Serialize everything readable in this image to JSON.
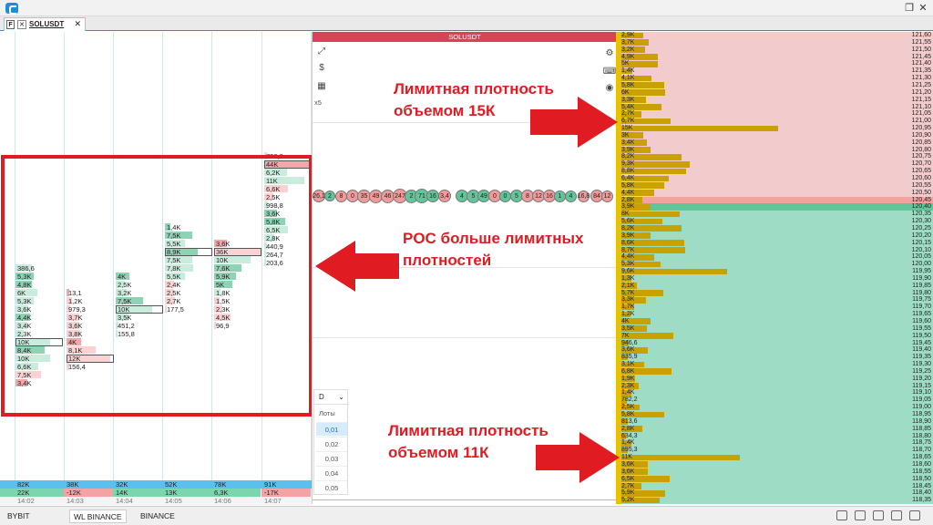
{
  "tab": {
    "label": "SOLUSDT"
  },
  "chart": {
    "header": "SOLUSDT",
    "zoom": "x5"
  },
  "cluster": {
    "columns": [
      {
        "x": 16,
        "bars": [
          {
            "y": 290,
            "t": "386,6",
            "k": "lg",
            "w": 18
          },
          {
            "y": 299,
            "t": "5,3K",
            "k": "g",
            "w": 20
          },
          {
            "y": 308,
            "t": "4,8K",
            "k": "g",
            "w": 18
          },
          {
            "y": 317,
            "t": "6K",
            "k": "lg",
            "w": 24
          },
          {
            "y": 326,
            "t": "5,3K",
            "k": "lg",
            "w": 20
          },
          {
            "y": 335,
            "t": "3,6K",
            "k": "lg",
            "w": 14
          },
          {
            "y": 344,
            "t": "4,4K",
            "k": "g",
            "w": 16
          },
          {
            "y": 353,
            "t": "3,4K",
            "k": "lg",
            "w": 13
          },
          {
            "y": 362,
            "t": "2,3K",
            "k": "lg",
            "w": 9
          },
          {
            "y": 371,
            "t": "10K",
            "k": "lg",
            "w": 38
          },
          {
            "y": 380,
            "t": "8,4K",
            "k": "g",
            "w": 32
          },
          {
            "y": 389,
            "t": "10K",
            "k": "lg",
            "w": 38
          },
          {
            "y": 398,
            "t": "6,6K",
            "k": "lg",
            "w": 25
          },
          {
            "y": 407,
            "t": "7,5K",
            "k": "lr",
            "w": 28
          },
          {
            "y": 416,
            "t": "3,4K",
            "k": "r",
            "w": 13
          }
        ],
        "poc": 371
      },
      {
        "x": 72,
        "bars": [
          {
            "y": 317,
            "t": "13,1",
            "k": "r",
            "w": 3
          },
          {
            "y": 326,
            "t": "1,2K",
            "k": "lr",
            "w": 6
          },
          {
            "y": 335,
            "t": "979,3",
            "k": "lr",
            "w": 4
          },
          {
            "y": 344,
            "t": "3,7K",
            "k": "lr",
            "w": 14
          },
          {
            "y": 353,
            "t": "3,6K",
            "k": "lr",
            "w": 14
          },
          {
            "y": 362,
            "t": "3,8K",
            "k": "lr",
            "w": 15
          },
          {
            "y": 371,
            "t": "4K",
            "k": "r",
            "w": 16
          },
          {
            "y": 380,
            "t": "8,1K",
            "k": "lr",
            "w": 32
          },
          {
            "y": 389,
            "t": "12K",
            "k": "lr",
            "w": 48
          },
          {
            "y": 398,
            "t": "156,4",
            "k": "lr",
            "w": 3
          }
        ],
        "poc": 389
      },
      {
        "x": 126,
        "bars": [
          {
            "y": 299,
            "t": "4K",
            "k": "g",
            "w": 15
          },
          {
            "y": 308,
            "t": "2,5K",
            "k": "lg",
            "w": 10
          },
          {
            "y": 317,
            "t": "3,2K",
            "k": "lg",
            "w": 12
          },
          {
            "y": 326,
            "t": "7,5K",
            "k": "g",
            "w": 30
          },
          {
            "y": 335,
            "t": "10K",
            "k": "lg",
            "w": 40
          },
          {
            "y": 344,
            "t": "3,5K",
            "k": "lg",
            "w": 14
          },
          {
            "y": 353,
            "t": "451,2",
            "k": "lg",
            "w": 3
          },
          {
            "y": 362,
            "t": "155,8",
            "k": "lg",
            "w": 2
          }
        ],
        "poc": 335
      },
      {
        "x": 180,
        "bars": [
          {
            "y": 245,
            "t": "1,4K",
            "k": "g",
            "w": 6
          },
          {
            "y": 254,
            "t": "7,5K",
            "k": "g",
            "w": 30
          },
          {
            "y": 263,
            "t": "5,5K",
            "k": "lg",
            "w": 22
          },
          {
            "y": 272,
            "t": "8,9K",
            "k": "g",
            "w": 36
          },
          {
            "y": 281,
            "t": "7,5K",
            "k": "lg",
            "w": 30
          },
          {
            "y": 290,
            "t": "7,8K",
            "k": "lg",
            "w": 31
          },
          {
            "y": 299,
            "t": "5,5K",
            "k": "lg",
            "w": 22
          },
          {
            "y": 308,
            "t": "2,4K",
            "k": "lr",
            "w": 10
          },
          {
            "y": 317,
            "t": "2,5K",
            "k": "lr",
            "w": 10
          },
          {
            "y": 326,
            "t": "2,7K",
            "k": "lr",
            "w": 11
          },
          {
            "y": 335,
            "t": "177,5",
            "k": "lr",
            "w": 2
          }
        ],
        "poc": 272
      },
      {
        "x": 234,
        "bars": [
          {
            "y": 263,
            "t": "3,6K",
            "k": "r",
            "w": 14
          },
          {
            "y": 272,
            "t": "36K",
            "k": "lr",
            "w": 52
          },
          {
            "y": 281,
            "t": "10K",
            "k": "lg",
            "w": 40
          },
          {
            "y": 290,
            "t": "7,6K",
            "k": "g",
            "w": 30
          },
          {
            "y": 299,
            "t": "5,9K",
            "k": "g",
            "w": 24
          },
          {
            "y": 308,
            "t": "5K",
            "k": "g",
            "w": 20
          },
          {
            "y": 317,
            "t": "1,8K",
            "k": "lg",
            "w": 7
          },
          {
            "y": 326,
            "t": "1,5K",
            "k": "lr",
            "w": 6
          },
          {
            "y": 335,
            "t": "2,3K",
            "k": "lr",
            "w": 9
          },
          {
            "y": 344,
            "t": "4,5K",
            "k": "lr",
            "w": 18
          },
          {
            "y": 353,
            "t": "96,9",
            "k": "lr",
            "w": 2
          }
        ],
        "poc": 272
      },
      {
        "x": 289,
        "bars": [
          {
            "y": 167,
            "t": "738,9",
            "k": "lg",
            "w": 3
          },
          {
            "y": 176,
            "t": "44K",
            "k": "r",
            "w": 52
          },
          {
            "y": 185,
            "t": "6,2K",
            "k": "lg",
            "w": 25
          },
          {
            "y": 194,
            "t": "11K",
            "k": "lg",
            "w": 44
          },
          {
            "y": 203,
            "t": "6,6K",
            "k": "lr",
            "w": 26
          },
          {
            "y": 212,
            "t": "2,5K",
            "k": "lr",
            "w": 10
          },
          {
            "y": 221,
            "t": "998,8",
            "k": "lg",
            "w": 4
          },
          {
            "y": 230,
            "t": "3,6K",
            "k": "g",
            "w": 14
          },
          {
            "y": 239,
            "t": "5,8K",
            "k": "g",
            "w": 23
          },
          {
            "y": 248,
            "t": "6,5K",
            "k": "lg",
            "w": 26
          },
          {
            "y": 257,
            "t": "2,8K",
            "k": "lg",
            "w": 11
          },
          {
            "y": 266,
            "t": "440,9",
            "k": "lg",
            "w": 3
          },
          {
            "y": 275,
            "t": "264,7",
            "k": "lg",
            "w": 2
          },
          {
            "y": 284,
            "t": "203,6",
            "k": "lg",
            "w": 2
          }
        ],
        "poc": 176
      }
    ],
    "summary": {
      "volume": [
        "82K",
        "38K",
        "32K",
        "52K",
        "78K",
        "91K"
      ],
      "delta": [
        "22K",
        "-12K",
        "14K",
        "13K",
        "6,3K",
        "-17K"
      ],
      "delta_positive": [
        true,
        false,
        true,
        true,
        true,
        false
      ],
      "times": [
        "14:02",
        "14:03",
        "14:04",
        "14:05",
        "14:06",
        "14:07"
      ]
    }
  },
  "bubbles": [
    {
      "x": 343,
      "d": 14,
      "t": "26,1",
      "c": "r"
    },
    {
      "x": 356,
      "d": 12,
      "t": "2",
      "c": "g"
    },
    {
      "x": 368,
      "d": 13,
      "t": "8",
      "c": "r"
    },
    {
      "x": 380,
      "d": 14,
      "t": "0",
      "c": "r"
    },
    {
      "x": 392,
      "d": 15,
      "t": "35",
      "c": "r"
    },
    {
      "x": 405,
      "d": 15,
      "t": "49",
      "c": "r"
    },
    {
      "x": 418,
      "d": 15,
      "t": "46",
      "c": "r"
    },
    {
      "x": 431,
      "d": 16,
      "t": "247",
      "c": "r"
    },
    {
      "x": 444,
      "d": 15,
      "t": "2",
      "c": "g"
    },
    {
      "x": 455,
      "d": 16,
      "t": "71",
      "c": "g"
    },
    {
      "x": 468,
      "d": 14,
      "t": "16",
      "c": "g"
    },
    {
      "x": 481,
      "d": 14,
      "t": "3,4",
      "c": "r"
    },
    {
      "x": 500,
      "d": 14,
      "t": "4",
      "c": "g"
    },
    {
      "x": 512,
      "d": 15,
      "t": "5",
      "c": "g"
    },
    {
      "x": 524,
      "d": 14,
      "t": "49",
      "c": "g"
    },
    {
      "x": 536,
      "d": 14,
      "t": "0",
      "c": "r"
    },
    {
      "x": 548,
      "d": 13,
      "t": "0",
      "c": "g"
    },
    {
      "x": 560,
      "d": 14,
      "t": "5",
      "c": "g"
    },
    {
      "x": 572,
      "d": 14,
      "t": "8",
      "c": "r"
    },
    {
      "x": 584,
      "d": 14,
      "t": "12",
      "c": "r"
    },
    {
      "x": 596,
      "d": 14,
      "t": "16",
      "c": "r"
    },
    {
      "x": 608,
      "d": 13,
      "t": "1",
      "c": "g"
    },
    {
      "x": 620,
      "d": 13,
      "t": "4",
      "c": "g"
    },
    {
      "x": 634,
      "d": 13,
      "t": "16,8",
      "c": "r"
    },
    {
      "x": 648,
      "d": 14,
      "t": "84",
      "c": "r"
    },
    {
      "x": 660,
      "d": 13,
      "t": "12",
      "c": "r"
    }
  ],
  "lots": {
    "label": "Лоты",
    "period": "D",
    "values": [
      "0,01",
      "0,02",
      "0,03",
      "0,04",
      "0,05"
    ]
  },
  "ladder": {
    "rows": [
      {
        "p": "121,60",
        "v": "2,9K",
        "w": 24
      },
      {
        "p": "121,55",
        "v": "3,7K",
        "w": 30
      },
      {
        "p": "121,50",
        "v": "3,2K",
        "w": 26
      },
      {
        "p": "121,45",
        "v": "4,9K",
        "w": 40
      },
      {
        "p": "121,40",
        "v": "5K",
        "w": 40
      },
      {
        "p": "121,35",
        "v": "1,4K",
        "w": 12
      },
      {
        "p": "121,30",
        "v": "4,1K",
        "w": 33
      },
      {
        "p": "121,25",
        "v": "5,8K",
        "w": 47
      },
      {
        "p": "121,20",
        "v": "6K",
        "w": 48
      },
      {
        "p": "121,15",
        "v": "3,3K",
        "w": 27
      },
      {
        "p": "121,10",
        "v": "5,4K",
        "w": 44
      },
      {
        "p": "121,05",
        "v": "2,7K",
        "w": 22
      },
      {
        "p": "121,00",
        "v": "6,7K",
        "w": 54
      },
      {
        "p": "120,95",
        "v": "15K",
        "w": 172
      },
      {
        "p": "120,90",
        "v": "3K",
        "w": 24
      },
      {
        "p": "120,85",
        "v": "3,4K",
        "w": 28
      },
      {
        "p": "120,80",
        "v": "3,9K",
        "w": 32
      },
      {
        "p": "120,75",
        "v": "8,2K",
        "w": 66
      },
      {
        "p": "120,70",
        "v": "9,3K",
        "w": 75
      },
      {
        "p": "120,65",
        "v": "8,8K",
        "w": 71
      },
      {
        "p": "120,60",
        "v": "6,4K",
        "w": 52
      },
      {
        "p": "120,55",
        "v": "5,8K",
        "w": 47
      },
      {
        "p": "120,50",
        "v": "4,4K",
        "w": 36
      },
      {
        "p": "120,45",
        "v": "2,8K",
        "w": 23
      },
      {
        "p": "120,40",
        "v": "3,9K",
        "w": 32
      },
      {
        "p": "120,35",
        "v": "8K",
        "w": 64
      },
      {
        "p": "120,30",
        "v": "5,6K",
        "w": 45
      },
      {
        "p": "120,25",
        "v": "8,2K",
        "w": 66
      },
      {
        "p": "120,20",
        "v": "3,9K",
        "w": 32
      },
      {
        "p": "120,15",
        "v": "8,6K",
        "w": 69
      },
      {
        "p": "120,10",
        "v": "8,7K",
        "w": 70
      },
      {
        "p": "120,05",
        "v": "4,4K",
        "w": 36
      },
      {
        "p": "120,00",
        "v": "5,3K",
        "w": 43
      },
      {
        "p": "119,95",
        "v": "9,6K",
        "w": 116
      },
      {
        "p": "119,90",
        "v": "1,3K",
        "w": 11
      },
      {
        "p": "119,85",
        "v": "2,1K",
        "w": 17
      },
      {
        "p": "119,80",
        "v": "5,7K",
        "w": 46
      },
      {
        "p": "119,75",
        "v": "3,3K",
        "w": 27
      },
      {
        "p": "119,70",
        "v": "1,7K",
        "w": 14
      },
      {
        "p": "119,65",
        "v": "1,2K",
        "w": 10
      },
      {
        "p": "119,60",
        "v": "4K",
        "w": 32
      },
      {
        "p": "119,55",
        "v": "3,5K",
        "w": 28
      },
      {
        "p": "119,50",
        "v": "7K",
        "w": 57
      },
      {
        "p": "119,45",
        "v": "946,6",
        "w": 8
      },
      {
        "p": "119,40",
        "v": "3,6K",
        "w": 29
      },
      {
        "p": "119,35",
        "v": "835,9",
        "w": 7
      },
      {
        "p": "119,30",
        "v": "3,1K",
        "w": 25
      },
      {
        "p": "119,25",
        "v": "6,8K",
        "w": 55
      },
      {
        "p": "119,20",
        "v": "1,9K",
        "w": 15
      },
      {
        "p": "119,15",
        "v": "2,3K",
        "w": 19
      },
      {
        "p": "119,10",
        "v": "1,4K",
        "w": 11
      },
      {
        "p": "119,05",
        "v": "782,2",
        "w": 6
      },
      {
        "p": "119,00",
        "v": "2,5K",
        "w": 20
      },
      {
        "p": "118,95",
        "v": "5,8K",
        "w": 47
      },
      {
        "p": "118,90",
        "v": "813,6",
        "w": 7
      },
      {
        "p": "118,85",
        "v": "2,8K",
        "w": 23
      },
      {
        "p": "118,80",
        "v": "634,3",
        "w": 5
      },
      {
        "p": "118,75",
        "v": "1,4K",
        "w": 11
      },
      {
        "p": "118,70",
        "v": "895,3",
        "w": 7
      },
      {
        "p": "118,65",
        "v": "11K",
        "w": 130
      },
      {
        "p": "118,60",
        "v": "3,6K",
        "w": 29
      },
      {
        "p": "118,55",
        "v": "3,6K",
        "w": 29
      },
      {
        "p": "118,50",
        "v": "6,5K",
        "w": 53
      },
      {
        "p": "118,45",
        "v": "2,7K",
        "w": 22
      },
      {
        "p": "118,40",
        "v": "5,9K",
        "w": 48
      },
      {
        "p": "118,35",
        "v": "5,2K",
        "w": 42
      }
    ],
    "ask_rows": 24,
    "highlight_rows": [
      23,
      24
    ]
  },
  "annotations": {
    "limit15_line1": "Лимитная плотность",
    "limit15_line2": "объемом 15К",
    "poc_line1": "POC больше лимитных",
    "poc_line2": "плотностей",
    "limit11_line1": "Лимитная плотность",
    "limit11_line2": "объемом 11К"
  },
  "bottom_tabs": [
    "BYBIT",
    "WL BINANCE",
    "BINANCE"
  ],
  "colors": {
    "ask_bg": "#f2cccc",
    "bid_bg": "#9fdcc5",
    "bar": "#c9a100",
    "accent_red": "#e11b22",
    "volume_row": "#5bc0ee",
    "delta_pos": "#7bd6ad",
    "delta_neg": "#f3a3a3"
  }
}
